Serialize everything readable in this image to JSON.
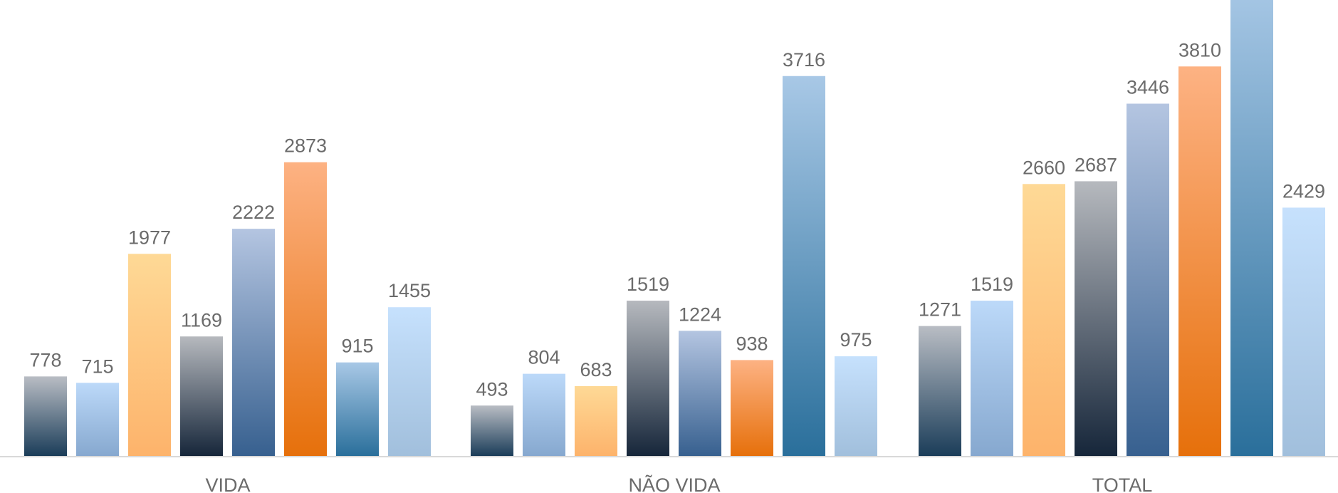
{
  "chart_data": {
    "type": "bar",
    "categories": [
      "VIDA",
      "NÃO VIDA",
      "TOTAL"
    ],
    "series": [
      {
        "values": [
          778,
          493,
          1271
        ],
        "color_top": "#b9bdc4",
        "color_bottom": "#1b3d59"
      },
      {
        "values": [
          715,
          804,
          1519
        ],
        "color_top": "#bcd9f9",
        "color_bottom": "#86a8cf"
      },
      {
        "values": [
          1977,
          683,
          2660
        ],
        "color_top": "#fed996",
        "color_bottom": "#fdb36b"
      },
      {
        "values": [
          1169,
          1519,
          2687
        ],
        "color_top": "#b6b9be",
        "color_bottom": "#16263a"
      },
      {
        "values": [
          2222,
          1224,
          3446
        ],
        "color_top": "#b4c5e1",
        "color_bottom": "#37608f"
      },
      {
        "values": [
          2873,
          938,
          3810
        ],
        "color_top": "#fdb283",
        "color_bottom": "#e6700b"
      },
      {
        "values": [
          915,
          3716,
          4631
        ],
        "color_top": "#a8c8e6",
        "color_bottom": "#2a6f9b"
      },
      {
        "values": [
          1455,
          975,
          2429
        ],
        "color_top": "#c6e1fd",
        "color_bottom": "#a1bfdc"
      }
    ],
    "data_labels": [
      [
        "778",
        "715",
        "1977",
        "1169",
        "2222",
        "2873",
        "915",
        "1455"
      ],
      [
        "493",
        "804",
        "683",
        "1519",
        "1224",
        "938",
        "3716",
        "975"
      ],
      [
        "1271",
        "1519",
        "2660",
        "2687",
        "3446",
        "3810",
        "",
        "2429"
      ]
    ],
    "ylim": [
      0,
      4460
    ],
    "grid": false,
    "legend": "none",
    "axis_color": "#d9d9d9",
    "label_color": "#6b6b6b"
  }
}
